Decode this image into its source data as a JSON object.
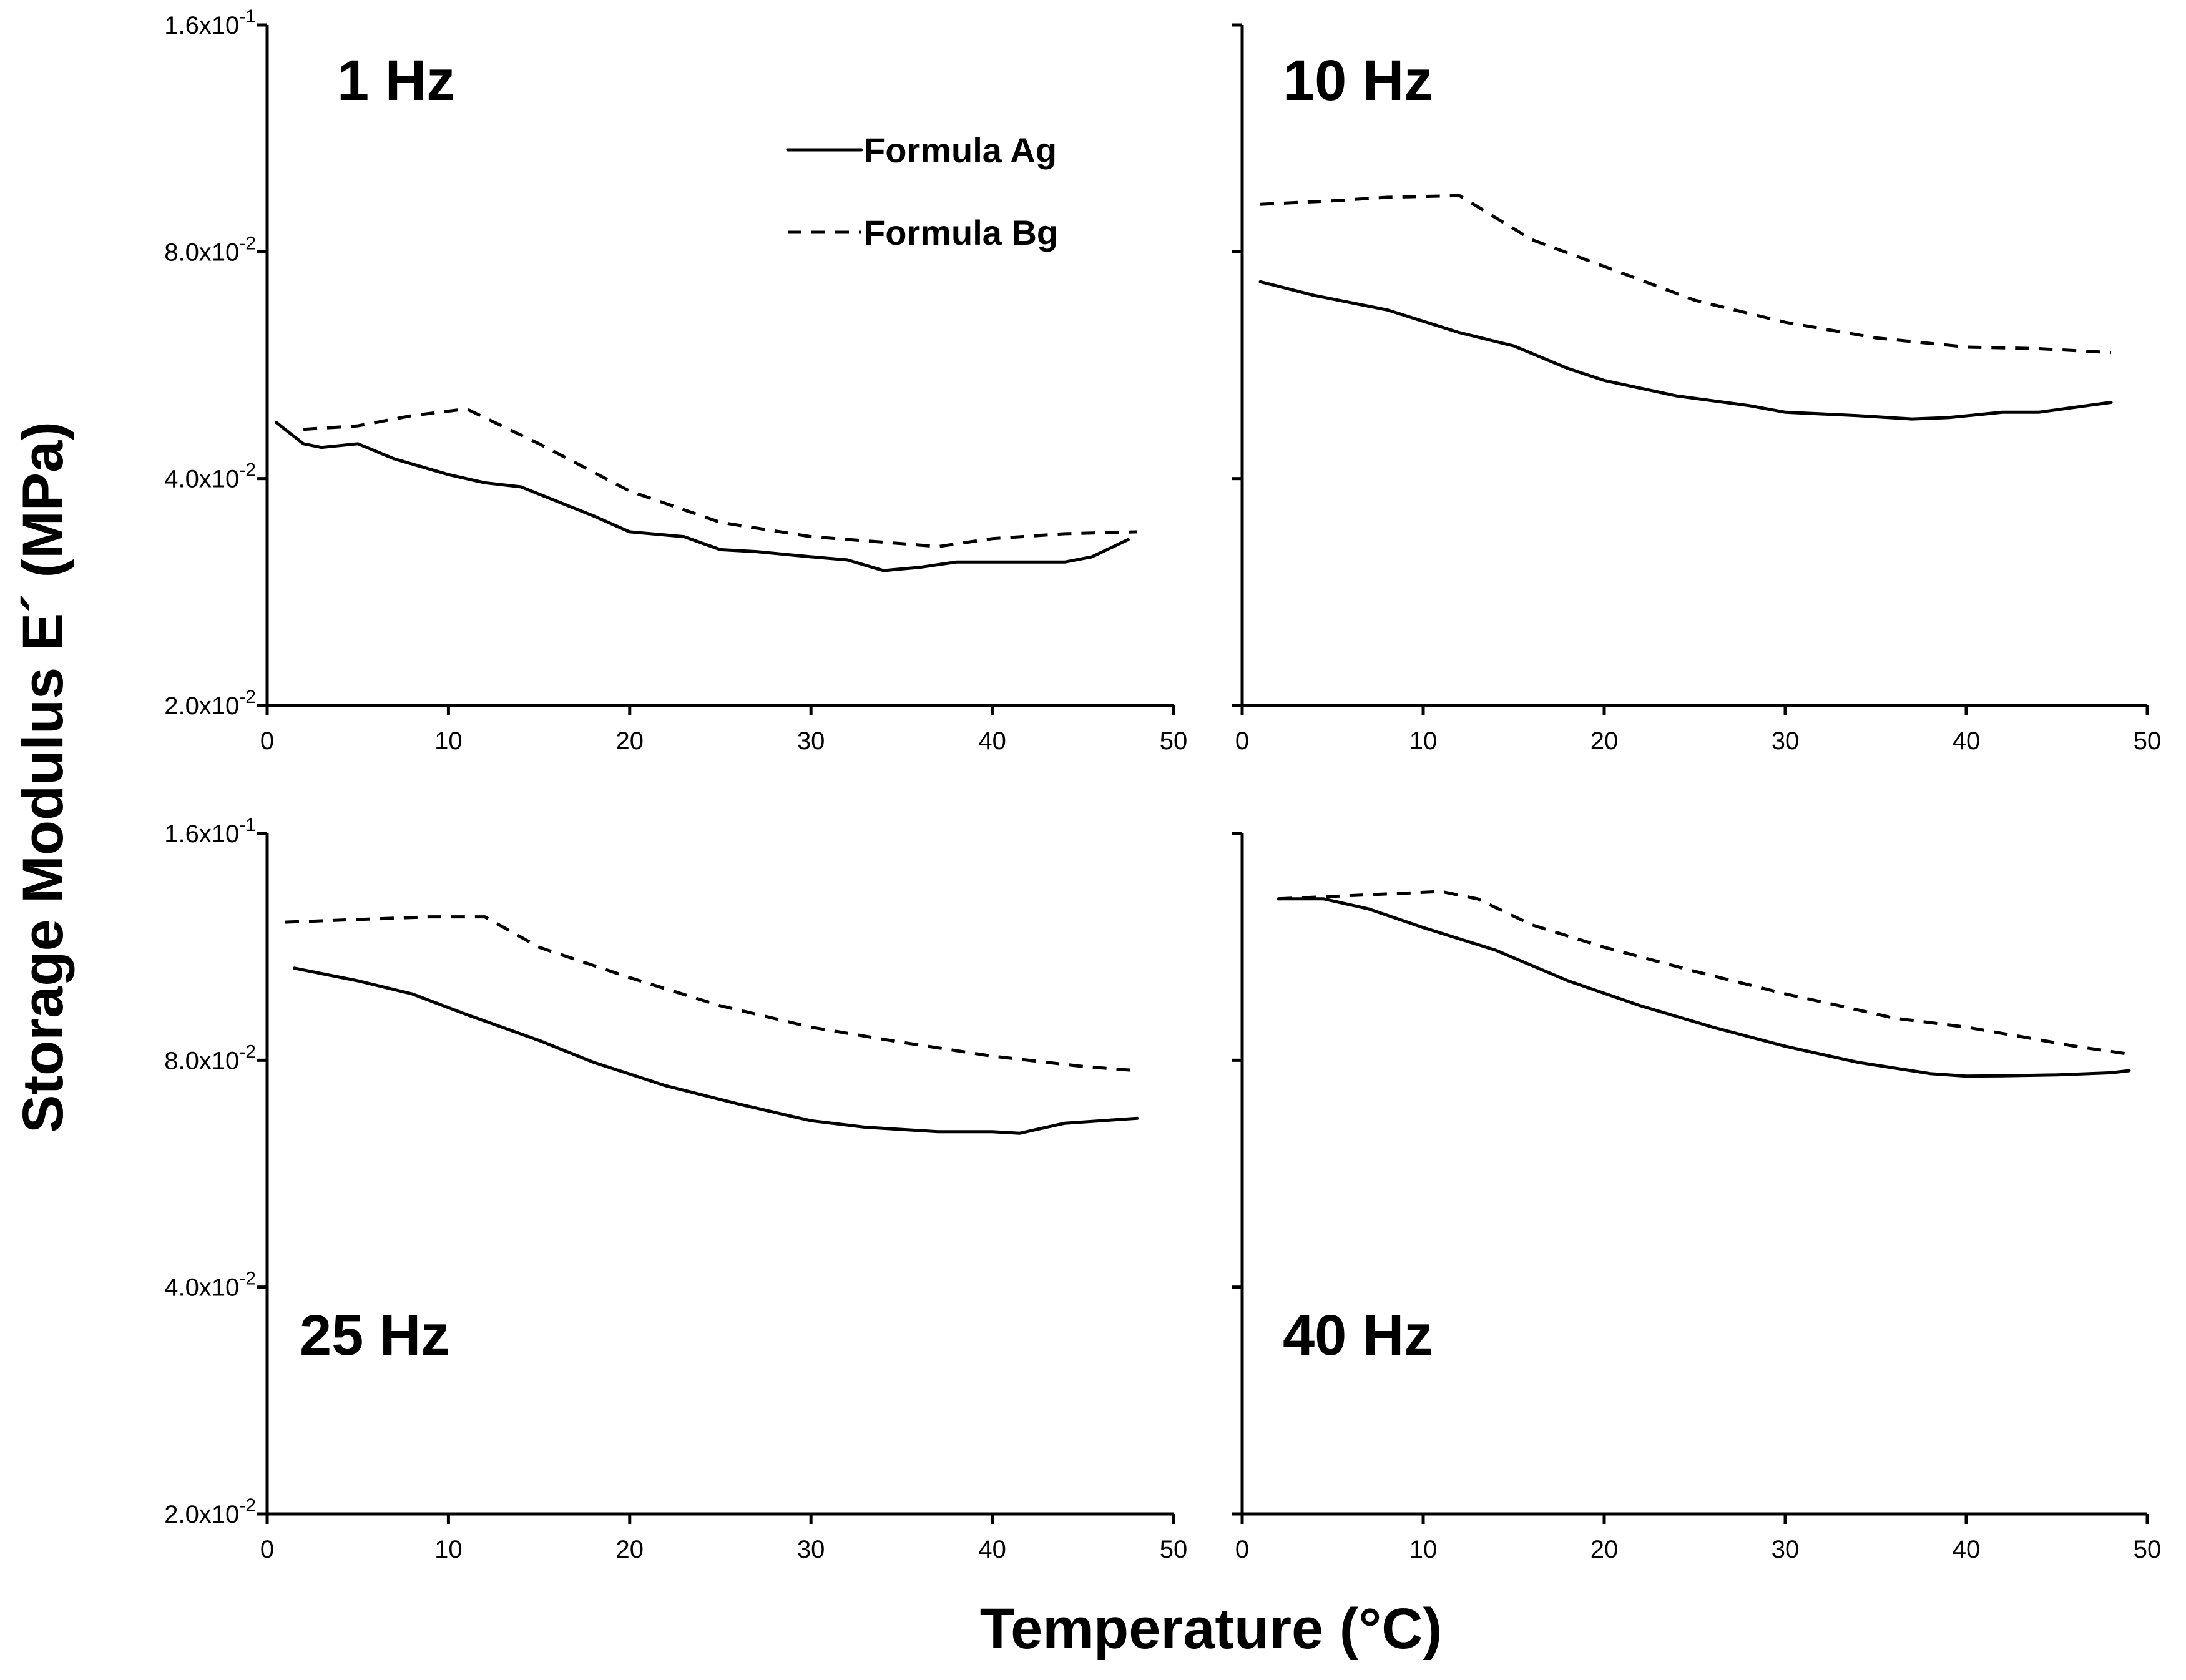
{
  "chart_data": [
    {
      "type": "line",
      "title": "1 Hz",
      "xlabel": "Temperature (°C)",
      "ylabel": "Storage Modulus E´ (MPa)",
      "xlim": [
        0,
        50
      ],
      "ylim": [
        0.02,
        0.16
      ],
      "yscale": "log2",
      "x_ticks": [
        "0",
        "10",
        "20",
        "30",
        "40",
        "50"
      ],
      "y_ticks": [
        {
          "value": 0.16,
          "mantissa": "1.6x10",
          "exponent": "-1"
        },
        {
          "value": 0.08,
          "mantissa": "8.0x10",
          "exponent": "-2"
        },
        {
          "value": 0.04,
          "mantissa": "4.0x10",
          "exponent": "-2"
        },
        {
          "value": 0.02,
          "mantissa": "2.0x10",
          "exponent": "-2"
        }
      ],
      "show_y_tick_labels": true,
      "legend": "top-center",
      "series": [
        {
          "name": "Formula Ag",
          "style": "solid",
          "x": [
            0.5,
            2,
            3,
            5,
            7,
            10,
            12,
            14,
            18,
            20,
            23,
            25,
            27,
            30,
            32,
            34,
            36,
            38,
            40,
            42,
            44,
            45.5,
            47.5
          ],
          "y": [
            0.0475,
            0.0445,
            0.044,
            0.0445,
            0.0425,
            0.0405,
            0.0395,
            0.039,
            0.0357,
            0.034,
            0.0335,
            0.0322,
            0.032,
            0.0315,
            0.0312,
            0.0302,
            0.0305,
            0.031,
            0.031,
            0.031,
            0.031,
            0.0315,
            0.0332
          ]
        },
        {
          "name": "Formula Bg",
          "style": "dashed",
          "x": [
            2,
            5,
            8,
            11,
            15,
            20,
            25,
            30,
            35,
            37,
            40,
            44,
            48
          ],
          "y": [
            0.0465,
            0.047,
            0.0485,
            0.0495,
            0.0445,
            0.0385,
            0.035,
            0.0335,
            0.0328,
            0.0325,
            0.0333,
            0.0338,
            0.034
          ]
        }
      ]
    },
    {
      "type": "line",
      "title": "10 Hz",
      "xlabel": "Temperature (°C)",
      "ylabel": "Storage Modulus E´ (MPa)",
      "xlim": [
        0,
        50
      ],
      "ylim": [
        0.02,
        0.16
      ],
      "yscale": "log2",
      "x_ticks": [
        "0",
        "10",
        "20",
        "30",
        "40",
        "50"
      ],
      "show_y_tick_labels": false,
      "series": [
        {
          "name": "Formula Ag",
          "style": "solid",
          "x": [
            1,
            4,
            8,
            12,
            15,
            18,
            20,
            24,
            28,
            30,
            34,
            37,
            39,
            42,
            44,
            48
          ],
          "y": [
            0.073,
            0.07,
            0.067,
            0.0625,
            0.06,
            0.056,
            0.054,
            0.0515,
            0.05,
            0.049,
            0.0485,
            0.048,
            0.0482,
            0.049,
            0.049,
            0.0505
          ]
        },
        {
          "name": "Formula Bg",
          "style": "dashed",
          "x": [
            1,
            5,
            8,
            12,
            16,
            20,
            25,
            30,
            35,
            40,
            44,
            48
          ],
          "y": [
            0.0925,
            0.0935,
            0.0945,
            0.095,
            0.083,
            0.0765,
            0.069,
            0.0645,
            0.0615,
            0.0598,
            0.0595,
            0.0588
          ]
        }
      ]
    },
    {
      "type": "line",
      "title": "25 Hz",
      "xlabel": "Temperature (°C)",
      "ylabel": "Storage Modulus E´ (MPa)",
      "xlim": [
        0,
        50
      ],
      "ylim": [
        0.02,
        0.16
      ],
      "yscale": "log2",
      "x_ticks": [
        "0",
        "10",
        "20",
        "30",
        "40",
        "50"
      ],
      "y_ticks": [
        {
          "value": 0.16,
          "mantissa": "1.6x10",
          "exponent": "-1"
        },
        {
          "value": 0.08,
          "mantissa": "8.0x10",
          "exponent": "-2"
        },
        {
          "value": 0.04,
          "mantissa": "4.0x10",
          "exponent": "-2"
        },
        {
          "value": 0.02,
          "mantissa": "2.0x10",
          "exponent": "-2"
        }
      ],
      "show_y_tick_labels": true,
      "series": [
        {
          "name": "Formula Ag",
          "style": "solid",
          "x": [
            1.5,
            5,
            8,
            11,
            15,
            18,
            22,
            26,
            30,
            33,
            37,
            40,
            41.5,
            44,
            48
          ],
          "y": [
            0.106,
            0.102,
            0.098,
            0.092,
            0.085,
            0.0795,
            0.074,
            0.07,
            0.0665,
            0.0652,
            0.0643,
            0.0643,
            0.064,
            0.066,
            0.067
          ]
        },
        {
          "name": "Formula Bg",
          "style": "dashed",
          "x": [
            1,
            5,
            9,
            12,
            15,
            20,
            25,
            30,
            35,
            40,
            42,
            45,
            48
          ],
          "y": [
            0.122,
            0.123,
            0.124,
            0.124,
            0.113,
            0.103,
            0.0945,
            0.0885,
            0.0845,
            0.081,
            0.08,
            0.0785,
            0.0775
          ]
        }
      ]
    },
    {
      "type": "line",
      "title": "40 Hz",
      "xlabel": "Temperature (°C)",
      "ylabel": "Storage Modulus E´ (MPa)",
      "xlim": [
        0,
        50
      ],
      "ylim": [
        0.02,
        0.16
      ],
      "yscale": "log2",
      "x_ticks": [
        "0",
        "10",
        "20",
        "30",
        "40",
        "50"
      ],
      "show_y_tick_labels": false,
      "series": [
        {
          "name": "Formula Ag",
          "style": "solid",
          "x": [
            2,
            4.5,
            7,
            10,
            14,
            18,
            22,
            26,
            30,
            34,
            38,
            40,
            42,
            45,
            48,
            49
          ],
          "y": [
            0.131,
            0.131,
            0.127,
            0.12,
            0.112,
            0.102,
            0.0945,
            0.0885,
            0.0835,
            0.0795,
            0.0768,
            0.0762,
            0.0763,
            0.0765,
            0.077,
            0.0775
          ]
        },
        {
          "name": "Formula Bg",
          "style": "dashed",
          "x": [
            2,
            5,
            8,
            11,
            13,
            16,
            20,
            25,
            30,
            33,
            36,
            40,
            43,
            46,
            49
          ],
          "y": [
            0.131,
            0.132,
            0.133,
            0.134,
            0.131,
            0.121,
            0.113,
            0.105,
            0.098,
            0.0945,
            0.091,
            0.0885,
            0.086,
            0.0835,
            0.0815
          ]
        }
      ]
    }
  ],
  "legend": {
    "items": [
      {
        "label": "Formula Ag",
        "style": "solid"
      },
      {
        "label": "Formula Bg",
        "style": "dashed"
      }
    ]
  },
  "shared": {
    "xlabel": "Temperature (°C)",
    "ylabel": "Storage Modulus E´ (MPa)"
  }
}
